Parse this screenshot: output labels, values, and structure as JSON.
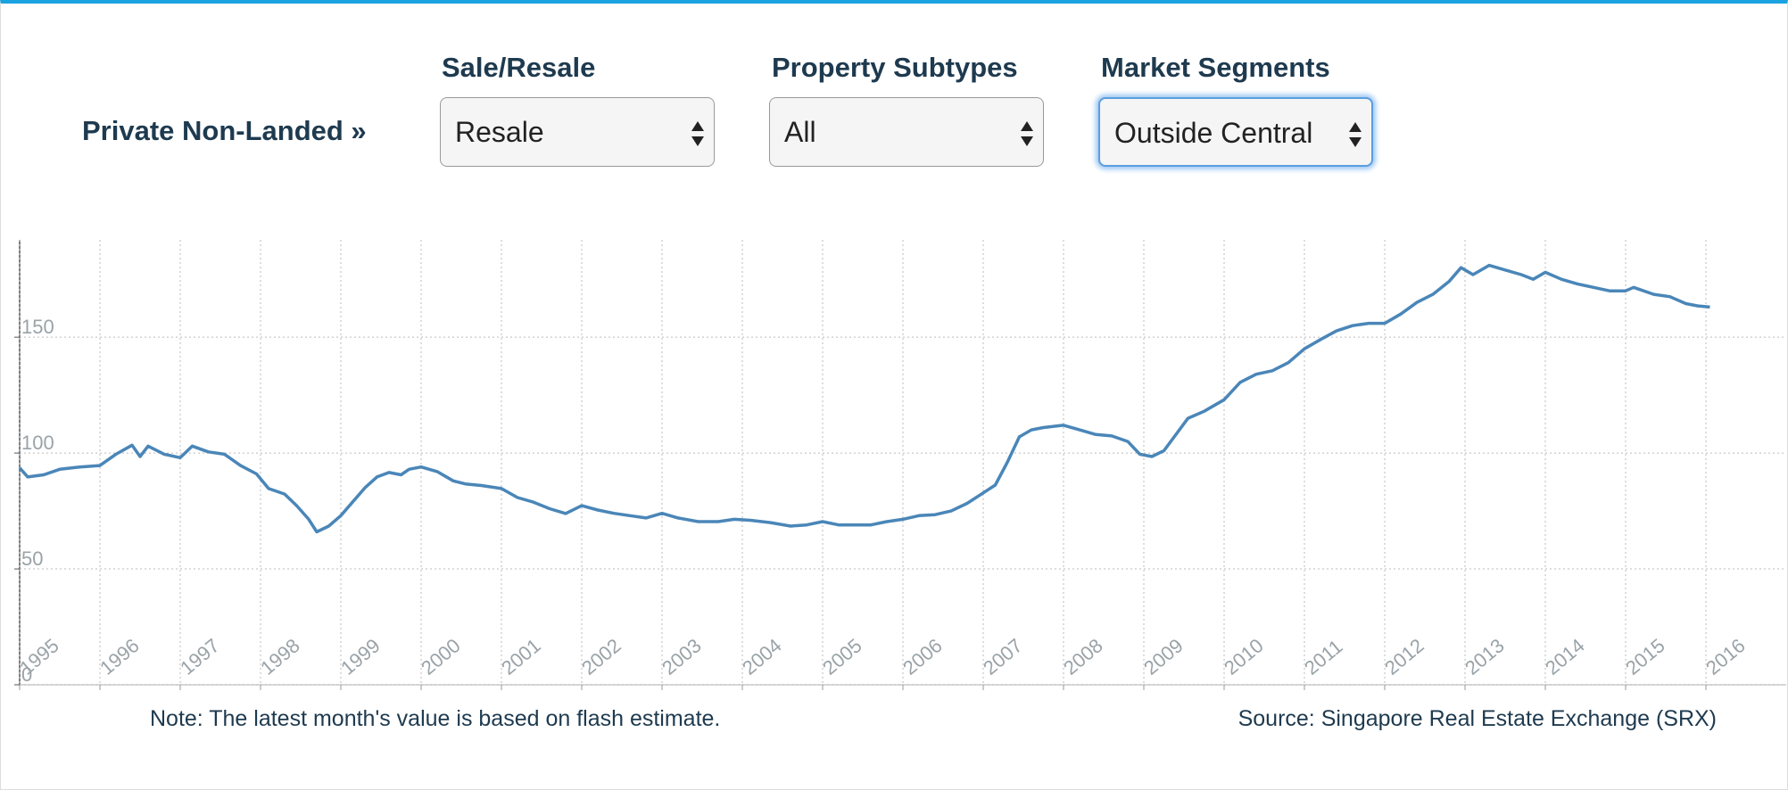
{
  "filters": {
    "property_type": "Private Non-Landed »",
    "sale_resale": {
      "label": "Sale/Resale",
      "value": "Resale"
    },
    "subtypes": {
      "label": "Property Subtypes",
      "value": "All"
    },
    "segments": {
      "label": "Market Segments",
      "value": "Outside Central"
    }
  },
  "chart_data": {
    "type": "line",
    "color": "#4a86b8",
    "grid": true,
    "x": [
      1995.0,
      1995.1,
      1995.3,
      1995.5,
      1995.75,
      1996.0,
      1996.2,
      1996.4,
      1996.5,
      1996.6,
      1996.8,
      1997.0,
      1997.15,
      1997.35,
      1997.55,
      1997.75,
      1997.95,
      1998.1,
      1998.3,
      1998.45,
      1998.6,
      1998.7,
      1998.85,
      1999.0,
      1999.15,
      1999.3,
      1999.45,
      1999.6,
      1999.75,
      1999.85,
      2000.0,
      2000.2,
      2000.4,
      2000.55,
      2000.75,
      2001.0,
      2001.2,
      2001.4,
      2001.6,
      2001.8,
      2002.0,
      2002.2,
      2002.4,
      2002.6,
      2002.8,
      2003.0,
      2003.2,
      2003.45,
      2003.7,
      2003.9,
      2004.1,
      2004.35,
      2004.6,
      2004.8,
      2005.0,
      2005.2,
      2005.4,
      2005.6,
      2005.8,
      2006.0,
      2006.2,
      2006.4,
      2006.6,
      2006.8,
      2007.0,
      2007.15,
      2007.3,
      2007.45,
      2007.6,
      2007.75,
      2008.0,
      2008.2,
      2008.4,
      2008.6,
      2008.8,
      2008.95,
      2009.1,
      2009.25,
      2009.4,
      2009.55,
      2009.75,
      2010.0,
      2010.2,
      2010.4,
      2010.6,
      2010.8,
      2011.0,
      2011.2,
      2011.4,
      2011.6,
      2011.8,
      2012.0,
      2012.2,
      2012.4,
      2012.6,
      2012.8,
      2012.95,
      2013.1,
      2013.3,
      2013.5,
      2013.7,
      2013.85,
      2014.0,
      2014.2,
      2014.4,
      2014.6,
      2014.8,
      2015.0,
      2015.1,
      2015.35,
      2015.55,
      2015.75,
      2015.9,
      2016.05
    ],
    "values": [
      93.6,
      89.7,
      90.6,
      93,
      94,
      94.6,
      99.5,
      103.4,
      98.5,
      103,
      99.5,
      98,
      103,
      100.5,
      99.5,
      94.6,
      91,
      84.7,
      82.3,
      77.3,
      71.4,
      66,
      68.5,
      73,
      79,
      85,
      89.7,
      91.6,
      90.6,
      93,
      94,
      92,
      88,
      86.7,
      86,
      84.7,
      80.8,
      78.8,
      76,
      73.9,
      77.3,
      75.4,
      74,
      73,
      72,
      74,
      72,
      70.4,
      70.4,
      71.4,
      71,
      70,
      68.5,
      69,
      70.4,
      69,
      69,
      69,
      70.4,
      71.4,
      73,
      73.4,
      75,
      78.3,
      82.8,
      86.2,
      96,
      107,
      110,
      111,
      112,
      110,
      108,
      107.4,
      105,
      99.5,
      98.5,
      101,
      108,
      115,
      118,
      123,
      130.5,
      134,
      135.5,
      139,
      145,
      149,
      152.7,
      155,
      156,
      156,
      160,
      165,
      168.5,
      174,
      180,
      177,
      181,
      179,
      177,
      175,
      178,
      175,
      173,
      171.5,
      170,
      170,
      171.5,
      168.5,
      167.5,
      164.5,
      163.5,
      163
    ],
    "xlim": [
      1995,
      2017
    ],
    "xticks": [
      1995,
      1996,
      1997,
      1998,
      1999,
      2000,
      2001,
      2002,
      2003,
      2004,
      2005,
      2006,
      2007,
      2008,
      2009,
      2010,
      2011,
      2012,
      2013,
      2014,
      2015,
      2016
    ],
    "ylim": [
      0,
      192
    ],
    "yticks": [
      0,
      50,
      100,
      150
    ]
  },
  "footer": {
    "note": "Note: The latest month's value is based on flash estimate.",
    "source": "Source: Singapore Real Estate Exchange (SRX)"
  }
}
